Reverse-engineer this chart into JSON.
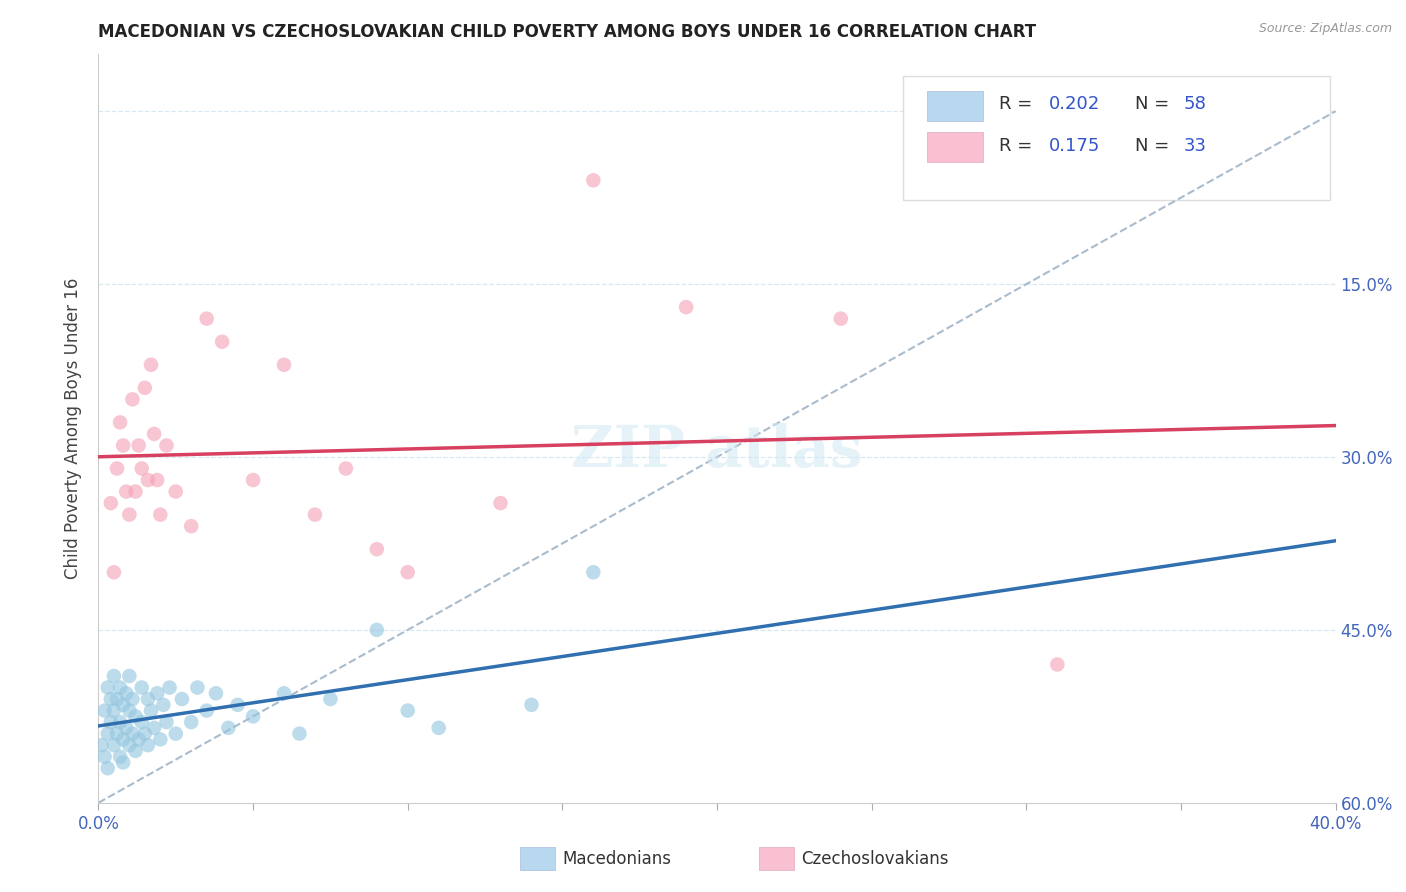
{
  "title": "MACEDONIAN VS CZECHOSLOVAKIAN CHILD POVERTY AMONG BOYS UNDER 16 CORRELATION CHART",
  "source": "Source: ZipAtlas.com",
  "ylabel": "Child Poverty Among Boys Under 16",
  "xlim": [
    0.0,
    0.4
  ],
  "ylim": [
    0.0,
    0.65
  ],
  "xticks": [
    0.0,
    0.05,
    0.1,
    0.15,
    0.2,
    0.25,
    0.3,
    0.35,
    0.4
  ],
  "xticklabels_show": [
    "0.0%",
    "",
    "",
    "",
    "",
    "",
    "",
    "",
    "40.0%"
  ],
  "yticks": [
    0.0,
    0.15,
    0.3,
    0.45,
    0.6
  ],
  "macedonian_R": "0.202",
  "macedonian_N": "58",
  "czechoslovakian_R": "0.175",
  "czechoslovakian_N": "33",
  "blue_dot_color": "#92c5de",
  "pink_dot_color": "#f4a0b4",
  "blue_line_color": "#3070b0",
  "pink_line_color": "#d84060",
  "dash_line_color": "#aabccc",
  "blue_legend_fill": "#b8d8f0",
  "pink_legend_fill": "#f8c0d0",
  "legend_r_color": "#3355cc",
  "legend_n_color": "#cc4444",
  "axis_tick_color": "#4466bb",
  "grid_color": "#d8e8f0",
  "watermark_color": "#d0e8f4",
  "mac_x": [
    0.001,
    0.002,
    0.002,
    0.003,
    0.003,
    0.003,
    0.004,
    0.004,
    0.005,
    0.005,
    0.005,
    0.006,
    0.006,
    0.007,
    0.007,
    0.007,
    0.008,
    0.008,
    0.008,
    0.009,
    0.009,
    0.01,
    0.01,
    0.01,
    0.011,
    0.011,
    0.012,
    0.012,
    0.013,
    0.014,
    0.014,
    0.015,
    0.016,
    0.016,
    0.017,
    0.018,
    0.019,
    0.02,
    0.021,
    0.022,
    0.023,
    0.025,
    0.027,
    0.03,
    0.032,
    0.035,
    0.038,
    0.042,
    0.045,
    0.05,
    0.06,
    0.065,
    0.075,
    0.09,
    0.1,
    0.11,
    0.14,
    0.16
  ],
  "mac_y": [
    0.05,
    0.08,
    0.04,
    0.1,
    0.06,
    0.03,
    0.07,
    0.09,
    0.05,
    0.08,
    0.11,
    0.06,
    0.09,
    0.04,
    0.07,
    0.1,
    0.055,
    0.085,
    0.035,
    0.065,
    0.095,
    0.05,
    0.08,
    0.11,
    0.06,
    0.09,
    0.045,
    0.075,
    0.055,
    0.07,
    0.1,
    0.06,
    0.09,
    0.05,
    0.08,
    0.065,
    0.095,
    0.055,
    0.085,
    0.07,
    0.1,
    0.06,
    0.09,
    0.07,
    0.1,
    0.08,
    0.095,
    0.065,
    0.085,
    0.075,
    0.095,
    0.06,
    0.09,
    0.15,
    0.08,
    0.065,
    0.085,
    0.2
  ],
  "czk_x": [
    0.004,
    0.005,
    0.006,
    0.007,
    0.008,
    0.009,
    0.01,
    0.011,
    0.012,
    0.013,
    0.014,
    0.015,
    0.016,
    0.017,
    0.018,
    0.019,
    0.02,
    0.022,
    0.025,
    0.03,
    0.035,
    0.04,
    0.05,
    0.06,
    0.07,
    0.08,
    0.09,
    0.1,
    0.13,
    0.16,
    0.19,
    0.24,
    0.31
  ],
  "czk_y": [
    0.26,
    0.2,
    0.29,
    0.33,
    0.31,
    0.27,
    0.25,
    0.35,
    0.27,
    0.31,
    0.29,
    0.36,
    0.28,
    0.38,
    0.32,
    0.28,
    0.25,
    0.31,
    0.27,
    0.24,
    0.42,
    0.4,
    0.28,
    0.38,
    0.25,
    0.29,
    0.22,
    0.2,
    0.26,
    0.54,
    0.43,
    0.42,
    0.12
  ]
}
